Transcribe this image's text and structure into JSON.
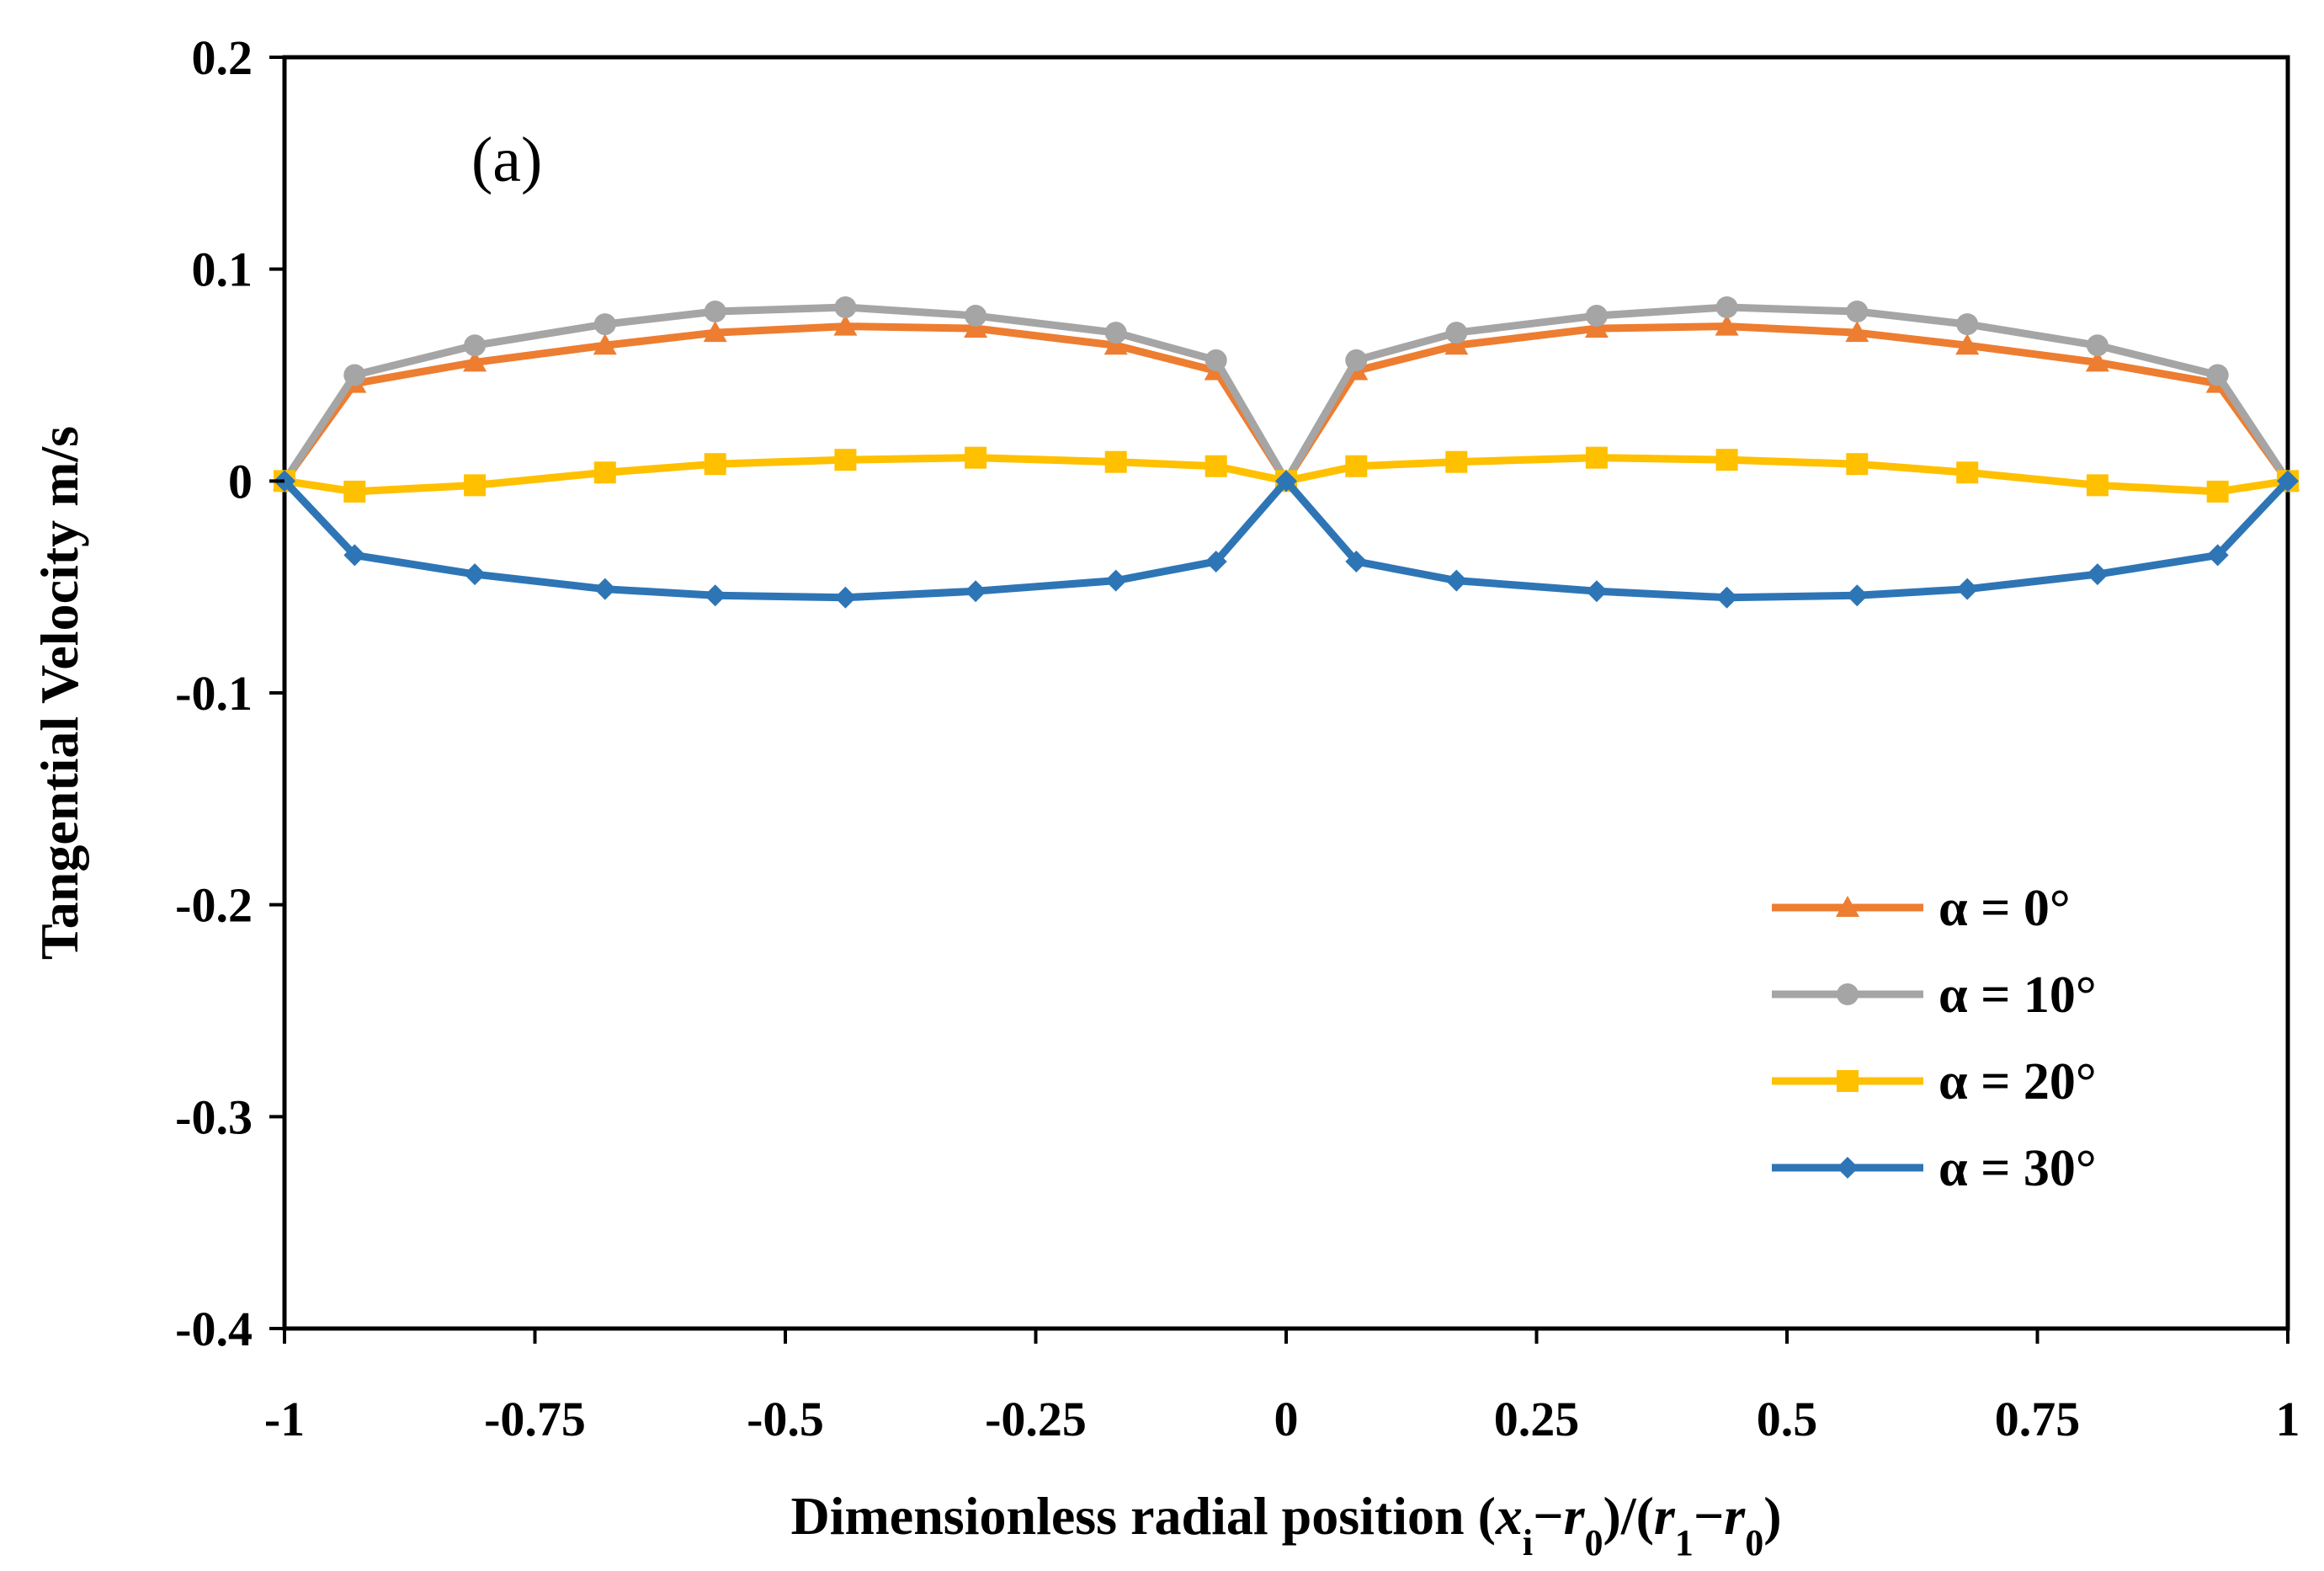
{
  "chart_data": {
    "type": "line",
    "title": "",
    "annotation": "(a)",
    "xlabel": {
      "parts": [
        {
          "text": "Dimensionless radial position (",
          "style": "normal"
        },
        {
          "text": "x",
          "style": "italic"
        },
        {
          "text": "i",
          "style": "sub"
        },
        {
          "text": "−",
          "style": "normal"
        },
        {
          "text": "r",
          "style": "italic"
        },
        {
          "text": "0",
          "style": "sub"
        },
        {
          "text": ")/(",
          "style": "normal"
        },
        {
          "text": "r",
          "style": "italic"
        },
        {
          "text": "1",
          "style": "sub"
        },
        {
          "text": "−",
          "style": "normal"
        },
        {
          "text": "r",
          "style": "italic"
        },
        {
          "text": "0",
          "style": "sub"
        },
        {
          "text": ")",
          "style": "normal"
        }
      ]
    },
    "ylabel": "Tangential Velocity m/s",
    "xlim": [
      -1,
      1
    ],
    "ylim": [
      -0.4,
      0.2
    ],
    "xticks": [
      -1,
      -0.75,
      -0.5,
      -0.25,
      0,
      0.25,
      0.5,
      0.75,
      1
    ],
    "xtick_labels": [
      "-1",
      "-0.75",
      "-0.5",
      "-0.25",
      "0",
      "0.25",
      "0.5",
      "0.75",
      "1"
    ],
    "yticks": [
      0.2,
      0.1,
      0,
      -0.1,
      -0.2,
      -0.3,
      -0.4
    ],
    "ytick_labels": [
      "0.2",
      "0.1",
      "0",
      "-0.1",
      "-0.2",
      "-0.3",
      "-0.4"
    ],
    "grid": false,
    "legend_position": "lower-right",
    "x": [
      -1,
      -0.93,
      -0.81,
      -0.68,
      -0.57,
      -0.44,
      -0.31,
      -0.17,
      -0.07,
      0,
      0.07,
      0.17,
      0.31,
      0.44,
      0.57,
      0.68,
      0.81,
      0.93,
      1
    ],
    "series": [
      {
        "name": "α = 0°",
        "color": "#ED7D31",
        "marker": "triangle",
        "values": [
          0,
          0.046,
          0.056,
          0.064,
          0.07,
          0.073,
          0.072,
          0.064,
          0.052,
          0,
          0.052,
          0.064,
          0.072,
          0.073,
          0.07,
          0.064,
          0.056,
          0.046,
          0
        ]
      },
      {
        "name": "α = 10°",
        "color": "#A5A5A5",
        "marker": "circle",
        "values": [
          0,
          0.05,
          0.064,
          0.074,
          0.08,
          0.082,
          0.078,
          0.07,
          0.057,
          0,
          0.057,
          0.07,
          0.078,
          0.082,
          0.08,
          0.074,
          0.064,
          0.05,
          0
        ]
      },
      {
        "name": "α = 20°",
        "color": "#FFC000",
        "marker": "square",
        "values": [
          0,
          -0.005,
          -0.002,
          0.004,
          0.008,
          0.01,
          0.011,
          0.009,
          0.007,
          0,
          0.007,
          0.009,
          0.011,
          0.01,
          0.008,
          0.004,
          -0.002,
          -0.005,
          0
        ]
      },
      {
        "name": "α = 30°",
        "color": "#2E75B6",
        "marker": "diamond",
        "values": [
          0,
          -0.035,
          -0.044,
          -0.051,
          -0.054,
          -0.055,
          -0.052,
          -0.047,
          -0.038,
          0,
          -0.038,
          -0.047,
          -0.052,
          -0.055,
          -0.054,
          -0.051,
          -0.044,
          -0.035,
          0
        ]
      }
    ]
  }
}
